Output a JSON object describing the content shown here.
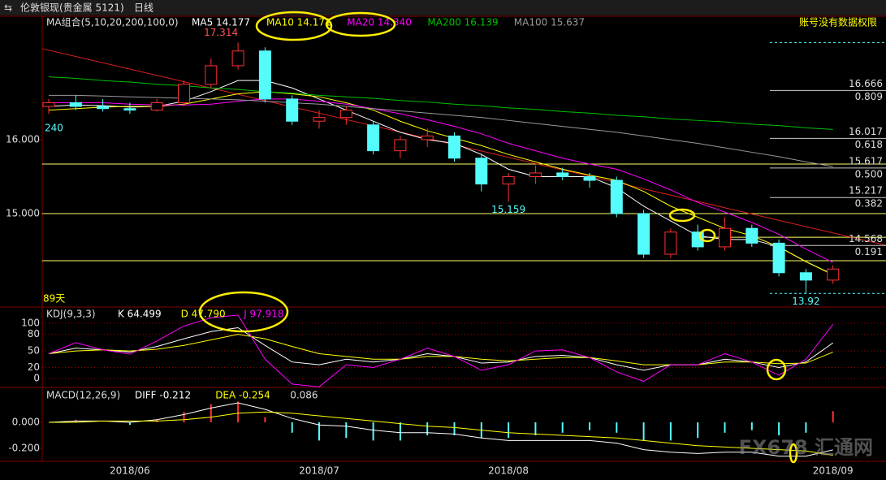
{
  "toolbar": {
    "title": "伦敦银现(贵金属 5121)",
    "period": "日线"
  },
  "watermark": "FX678 汇通网",
  "chart_data": [
    {
      "type": "candlestick",
      "legend_title": "MA组合(5,10,20,200,100,0)",
      "notice": "账号没有数据权限",
      "days_label": "89天",
      "left_label": "240",
      "ylim": [
        13.736,
        17.67
      ],
      "yticks": [
        {
          "value": 15,
          "label": "15.000"
        },
        {
          "value": 16,
          "label": "16.000"
        }
      ],
      "categories": [
        null,
        null,
        null,
        "2018/06",
        null,
        null,
        null,
        null,
        null,
        null,
        "2018/07",
        null,
        null,
        null,
        null,
        null,
        null,
        "2018/08",
        null,
        null,
        null,
        null,
        null,
        null,
        null,
        null,
        null,
        null,
        null,
        "2018/09"
      ],
      "up_color": "#ff3232",
      "down_color": "#54fcfc",
      "candles": [
        [
          16.45,
          16.55,
          16.35,
          16.5
        ],
        [
          16.5,
          16.6,
          16.4,
          16.45
        ],
        [
          16.45,
          16.55,
          16.38,
          16.42
        ],
        [
          16.42,
          16.5,
          16.35,
          16.4
        ],
        [
          16.4,
          16.55,
          16.38,
          16.5
        ],
        [
          16.5,
          16.8,
          16.45,
          16.75
        ],
        [
          16.75,
          17.1,
          16.7,
          17.0
        ],
        [
          17.0,
          17.314,
          16.95,
          17.2
        ],
        [
          17.2,
          17.25,
          16.5,
          16.55
        ],
        [
          16.55,
          16.6,
          16.2,
          16.25
        ],
        [
          16.25,
          16.4,
          16.15,
          16.3
        ],
        [
          16.3,
          16.45,
          16.2,
          16.4
        ],
        [
          16.2,
          16.25,
          15.8,
          15.85
        ],
        [
          15.85,
          16.05,
          15.75,
          16.0
        ],
        [
          16.0,
          16.15,
          15.9,
          16.05
        ],
        [
          16.05,
          16.1,
          15.7,
          15.75
        ],
        [
          15.75,
          15.8,
          15.3,
          15.4
        ],
        [
          15.4,
          15.55,
          15.159,
          15.5
        ],
        [
          15.5,
          15.65,
          15.4,
          15.55
        ],
        [
          15.55,
          15.62,
          15.45,
          15.5
        ],
        [
          15.5,
          15.55,
          15.35,
          15.45
        ],
        [
          15.45,
          15.5,
          14.95,
          15.0
        ],
        [
          15.0,
          15.05,
          14.4,
          14.45
        ],
        [
          14.45,
          14.8,
          14.4,
          14.75
        ],
        [
          14.75,
          14.85,
          14.5,
          14.55
        ],
        [
          14.55,
          14.95,
          14.5,
          14.8
        ],
        [
          14.8,
          14.85,
          14.55,
          14.6
        ],
        [
          14.6,
          14.65,
          14.15,
          14.2
        ],
        [
          14.2,
          14.25,
          13.92,
          14.1
        ],
        [
          14.1,
          14.3,
          14.05,
          14.25
        ]
      ],
      "series": [
        {
          "name": "MA5",
          "label": "MA5 14.177",
          "color": "#ffffff",
          "values": [
            16.45,
            16.47,
            16.46,
            16.44,
            16.45,
            16.52,
            16.65,
            16.8,
            16.8,
            16.7,
            16.55,
            16.4,
            16.25,
            16.1,
            16.0,
            15.95,
            15.8,
            15.6,
            15.5,
            15.5,
            15.5,
            15.35,
            15.1,
            14.9,
            14.7,
            14.65,
            14.65,
            14.55,
            14.35,
            14.177
          ]
        },
        {
          "name": "MA10",
          "label": "MA10 14.171",
          "color": "#ffff00",
          "values": [
            16.4,
            16.42,
            16.44,
            16.45,
            16.45,
            16.48,
            16.55,
            16.62,
            16.65,
            16.62,
            16.58,
            16.5,
            16.4,
            16.25,
            16.12,
            16.02,
            15.92,
            15.8,
            15.7,
            15.6,
            15.52,
            15.45,
            15.3,
            15.1,
            14.95,
            14.8,
            14.7,
            14.55,
            14.35,
            14.171
          ]
        },
        {
          "name": "MA20",
          "label": "MA20 14.340",
          "color": "#ff00ff",
          "values": [
            16.5,
            16.5,
            16.5,
            16.48,
            16.47,
            16.47,
            16.48,
            16.52,
            16.55,
            16.55,
            16.52,
            16.48,
            16.42,
            16.35,
            16.27,
            16.18,
            16.08,
            15.95,
            15.85,
            15.75,
            15.67,
            15.6,
            15.47,
            15.32,
            15.15,
            15.02,
            14.88,
            14.72,
            14.52,
            14.34
          ]
        },
        {
          "name": "MA200",
          "label": "MA200 16.139",
          "color": "#00c000",
          "values": [
            16.85,
            16.83,
            16.8,
            16.78,
            16.75,
            16.73,
            16.7,
            16.68,
            16.65,
            16.63,
            16.6,
            16.58,
            16.56,
            16.53,
            16.51,
            16.48,
            16.46,
            16.43,
            16.41,
            16.38,
            16.36,
            16.33,
            16.31,
            16.28,
            16.26,
            16.24,
            16.21,
            16.19,
            16.16,
            16.139
          ]
        },
        {
          "name": "MA100",
          "label": "MA100 15.637",
          "color": "#999999",
          "values": [
            16.6,
            16.6,
            16.59,
            16.58,
            16.57,
            16.56,
            16.55,
            16.54,
            16.52,
            16.5,
            16.48,
            16.45,
            16.42,
            16.39,
            16.36,
            16.33,
            16.3,
            16.26,
            16.22,
            16.18,
            16.14,
            16.1,
            16.05,
            16.0,
            15.95,
            15.89,
            15.83,
            15.77,
            15.7,
            15.637
          ]
        }
      ],
      "annotations": {
        "high": 17.314,
        "low": 13.92,
        "swing_low": 15.159
      },
      "fib": [
        {
          "price": 16.666,
          "ratio": 0.809
        },
        {
          "price": 16.017,
          "ratio": 0.618
        },
        {
          "price": 15.617,
          "ratio": {
            "value": 0.5,
            "label": "0.500"
          }
        },
        {
          "price": 15.217,
          "ratio": 0.382
        },
        {
          "price": 14.568,
          "ratio": 0.191
        }
      ],
      "hlines": [
        15.67,
        15,
        14.363
      ],
      "short_hline": 14.68,
      "trendline": [
        17.231,
        14.571
      ]
    },
    {
      "type": "line",
      "legend_title": "KDJ(9,3,3)",
      "ylim": [
        -16,
        128
      ],
      "yticks": [
        0,
        20,
        50,
        80,
        100
      ],
      "series": [
        {
          "name": "K",
          "label": "K 64.499",
          "color": "#ffffff",
          "values": [
            45,
            55,
            52,
            48,
            58,
            72,
            85,
            92,
            60,
            30,
            25,
            35,
            30,
            35,
            45,
            40,
            28,
            30,
            40,
            42,
            38,
            25,
            15,
            25,
            25,
            35,
            30,
            20,
            30,
            64.499
          ]
        },
        {
          "name": "D",
          "label": "D 47.790",
          "color": "#ffff00",
          "values": [
            45,
            50,
            52,
            50,
            53,
            60,
            70,
            80,
            72,
            58,
            45,
            40,
            35,
            35,
            40,
            40,
            35,
            32,
            35,
            38,
            38,
            32,
            25,
            25,
            25,
            30,
            30,
            27,
            28,
            47.79
          ]
        },
        {
          "name": "J",
          "label": "J 97.918",
          "color": "#ff00ff",
          "values": [
            45,
            65,
            52,
            44,
            68,
            95,
            110,
            115,
            35,
            -10,
            -15,
            25,
            20,
            35,
            55,
            40,
            15,
            25,
            50,
            52,
            38,
            12,
            -5,
            25,
            25,
            45,
            30,
            6,
            35,
            97.918
          ]
        }
      ]
    },
    {
      "type": "macd",
      "legend_title": "MACD(12,26,9)",
      "ylim": [
        -0.3,
        0.2625
      ],
      "yticks": [
        {
          "value": 0,
          "label": "0.000"
        },
        {
          "value": -0.2,
          "label": "-0.200"
        }
      ],
      "series": [
        {
          "name": "DIFF",
          "label": "DIFF -0.212",
          "color": "#ffffff",
          "values": [
            0,
            0.01,
            0.01,
            0,
            0.02,
            0.06,
            0.11,
            0.15,
            0.1,
            0.03,
            -0.02,
            -0.03,
            -0.06,
            -0.08,
            -0.08,
            -0.09,
            -0.12,
            -0.14,
            -0.14,
            -0.14,
            -0.14,
            -0.16,
            -0.21,
            -0.23,
            -0.24,
            -0.23,
            -0.23,
            -0.26,
            -0.26,
            -0.212
          ]
        },
        {
          "name": "DEA",
          "label": "DEA -0.254",
          "color": "#ffff00",
          "values": [
            0,
            0,
            0.01,
            0.01,
            0.01,
            0.02,
            0.04,
            0.07,
            0.08,
            0.07,
            0.05,
            0.03,
            0.01,
            -0.01,
            -0.03,
            -0.04,
            -0.06,
            -0.08,
            -0.09,
            -0.1,
            -0.11,
            -0.12,
            -0.14,
            -0.16,
            -0.18,
            -0.19,
            -0.2,
            -0.21,
            -0.22,
            -0.254
          ]
        }
      ],
      "histogram": {
        "label": "0.086",
        "up_color": "#ff3232",
        "down_color": "#54fcfc",
        "values": [
          0,
          0.02,
          0,
          -0.02,
          0.02,
          0.08,
          0.14,
          0.16,
          0.04,
          -0.08,
          -0.14,
          -0.12,
          -0.14,
          -0.14,
          -0.1,
          -0.1,
          -0.12,
          -0.12,
          -0.1,
          -0.08,
          -0.06,
          -0.08,
          -0.14,
          -0.14,
          -0.12,
          -0.08,
          -0.06,
          -0.1,
          -0.08,
          0.086
        ]
      }
    }
  ]
}
